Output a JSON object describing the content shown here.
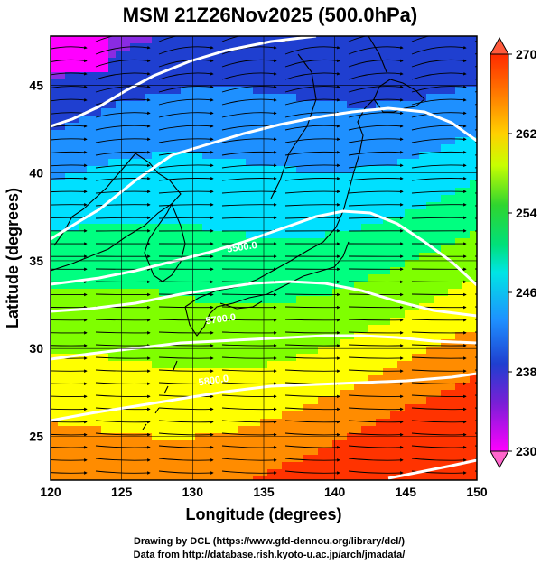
{
  "title": "MSM 21Z26Nov2025 (500.0hPa)",
  "axes": {
    "xlabel": "Longitude (degrees)",
    "ylabel": "Latitude  (degrees)",
    "xlim": [
      120,
      150
    ],
    "ylim": [
      22.5,
      47.8
    ],
    "xticks": [
      120,
      125,
      130,
      135,
      140,
      145,
      150
    ],
    "yticks": [
      25,
      30,
      35,
      40,
      45
    ],
    "grid": true
  },
  "colorbar": {
    "min": 230,
    "max": 270,
    "ticks": [
      "270",
      "262",
      "254",
      "246",
      "238",
      "230"
    ],
    "tick_values": [
      270,
      262,
      254,
      246,
      238,
      230
    ],
    "colors": [
      "#ff00ff",
      "#8a2be2",
      "#1f3fd0",
      "#1e90ff",
      "#00e0ff",
      "#00ff80",
      "#7fff00",
      "#ffff00",
      "#ff8c00",
      "#ff3300"
    ]
  },
  "contour_labels": [
    {
      "text": "5500.0",
      "lon": 133.5,
      "lat": 35.6
    },
    {
      "text": "5700.0",
      "lon": 132.0,
      "lat": 31.5
    },
    {
      "text": "5800.0",
      "lon": 131.5,
      "lat": 28.0
    }
  ],
  "credits": {
    "line1": "Drawing by DCL (https://www.gfd-dennou.org/library/dcl/)",
    "line2": "Data from http://database.rish.kyoto-u.ac.jp/arch/jmadata/"
  }
}
